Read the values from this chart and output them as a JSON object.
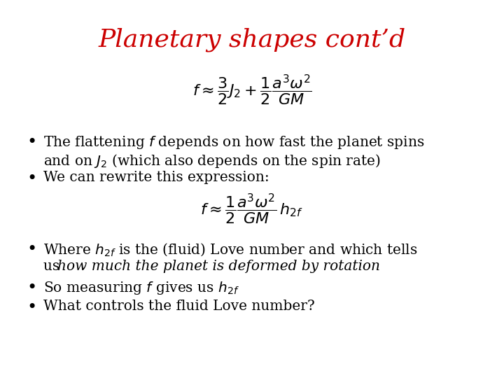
{
  "title": "Planetary shapes cont’d",
  "title_color": "#cc0000",
  "title_fontsize": 26,
  "background_color": "#ffffff",
  "formula1": "$f \\approx \\dfrac{3}{2}J_2 + \\dfrac{1}{2}\\dfrac{a^3\\omega^2}{GM}$",
  "formula2": "$f \\approx \\dfrac{1}{2}\\dfrac{a^3\\omega^2}{GM}\\,h_{2f}$",
  "text_color": "#000000",
  "body_fontsize": 14.5
}
